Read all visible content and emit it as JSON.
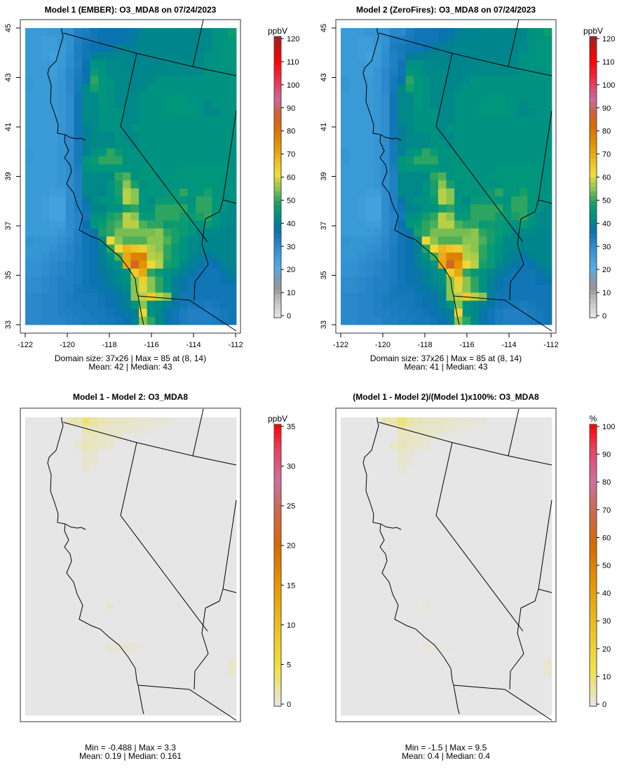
{
  "chart_data": [
    {
      "type": "heatmap",
      "id": "m1",
      "title": "Model 1 (EMBER): O3_MDA8 on 07/24/2023",
      "units": "ppbV",
      "colorbar_ticks": [
        0,
        10,
        20,
        30,
        40,
        50,
        60,
        70,
        80,
        90,
        100,
        110,
        120
      ],
      "xticks": [
        "-122",
        "-120",
        "-118",
        "-116",
        "-114",
        "-112"
      ],
      "yticks": [
        "33",
        "35",
        "37",
        "39",
        "41",
        "43",
        "45"
      ],
      "xlim": [
        -122,
        -112
      ],
      "ylim": [
        33,
        45
      ],
      "stats_line1": "Domain size: 37x26 | Max = 85 at (8, 14)",
      "stats_line2": "Mean: 42 |  Median: 43"
    },
    {
      "type": "heatmap",
      "id": "m2",
      "title": "Model 2 (ZeroFires): O3_MDA8 on 07/24/2023",
      "units": "ppbV",
      "colorbar_ticks": [
        0,
        10,
        20,
        30,
        40,
        50,
        60,
        70,
        80,
        90,
        100,
        110,
        120
      ],
      "xticks": [
        "-122",
        "-120",
        "-118",
        "-116",
        "-114",
        "-112"
      ],
      "yticks": [
        "33",
        "35",
        "37",
        "39",
        "41",
        "43",
        "45"
      ],
      "xlim": [
        -122,
        -112
      ],
      "ylim": [
        33,
        45
      ],
      "stats_line1": "Domain size: 37x26 | Max = 85 at (8, 14)",
      "stats_line2": "Mean: 41 |  Median: 43"
    },
    {
      "type": "heatmap",
      "id": "diff",
      "title": "Model 1 - Model 2: O3_MDA8",
      "units": "ppbV",
      "colorbar_ticks": [
        0,
        5,
        10,
        15,
        20,
        25,
        30,
        35
      ],
      "stats_line1": "Min = -0.488 | Max = 3.3",
      "stats_line2": "Mean: 0.19 |  Median: 0.161"
    },
    {
      "type": "heatmap",
      "id": "pct",
      "title": "(Model 1 - Model 2)/(Model 1)x100%: O3_MDA8",
      "units": "%",
      "colorbar_ticks": [
        0,
        10,
        20,
        30,
        40,
        50,
        60,
        70,
        80,
        90,
        100
      ],
      "stats_line1": "Min = -1.5 | Max = 9.5",
      "stats_line2": "Mean: 0.4 |  Median: 0.4"
    }
  ],
  "grid": {
    "rows": 37,
    "cols": 26,
    "model1": [
      [
        27,
        27,
        27,
        28,
        28,
        29,
        33,
        34,
        36,
        37,
        37,
        37,
        38,
        38,
        41,
        41,
        41,
        41,
        41,
        41,
        41,
        41,
        41,
        44,
        44,
        47
      ],
      [
        27,
        27,
        26,
        26,
        28,
        29,
        33,
        35,
        36,
        37,
        37,
        37,
        38,
        40,
        41,
        41,
        41,
        41,
        41,
        41,
        41,
        42,
        42,
        44,
        45,
        45
      ],
      [
        27,
        27,
        26,
        26,
        27,
        29,
        34,
        36,
        37,
        37,
        38,
        40,
        40,
        40,
        41,
        41,
        41,
        41,
        41,
        41,
        41,
        41,
        42,
        44,
        45,
        45
      ],
      [
        27,
        27,
        26,
        25,
        27,
        30,
        34,
        36,
        40,
        41,
        41,
        41,
        41,
        40,
        41,
        41,
        41,
        41,
        41,
        41,
        41,
        42,
        44,
        44,
        45,
        45
      ],
      [
        27,
        27,
        27,
        26,
        27,
        30,
        33,
        37,
        44,
        44,
        42,
        42,
        41,
        41,
        41,
        41,
        41,
        42,
        42,
        42,
        42,
        42,
        44,
        44,
        45,
        45
      ],
      [
        27,
        27,
        27,
        26,
        28,
        31,
        34,
        37,
        46,
        44,
        42,
        42,
        42,
        41,
        41,
        41,
        42,
        42,
        42,
        42,
        42,
        42,
        44,
        44,
        44,
        44
      ],
      [
        28,
        27,
        27,
        27,
        28,
        31,
        35,
        38,
        50,
        45,
        44,
        42,
        42,
        41,
        41,
        42,
        44,
        44,
        44,
        44,
        44,
        44,
        44,
        44,
        44,
        44
      ],
      [
        28,
        27,
        27,
        27,
        28,
        31,
        35,
        42,
        48,
        45,
        44,
        42,
        42,
        41,
        42,
        44,
        44,
        44,
        44,
        44,
        44,
        44,
        44,
        44,
        44,
        44
      ],
      [
        27,
        27,
        27,
        27,
        28,
        30,
        36,
        42,
        42,
        45,
        44,
        42,
        42,
        42,
        44,
        44,
        44,
        44,
        45,
        45,
        44,
        44,
        44,
        44,
        44,
        44
      ],
      [
        27,
        27,
        27,
        27,
        28,
        30,
        36,
        42,
        42,
        45,
        44,
        42,
        42,
        42,
        44,
        44,
        44,
        45,
        45,
        45,
        44,
        44,
        42,
        44,
        44,
        44
      ],
      [
        27,
        27,
        27,
        27,
        28,
        30,
        36,
        42,
        42,
        44,
        44,
        44,
        42,
        42,
        44,
        44,
        44,
        45,
        45,
        45,
        45,
        44,
        42,
        42,
        44,
        44
      ],
      [
        27,
        27,
        27,
        27,
        28,
        30,
        36,
        42,
        42,
        44,
        44,
        44,
        42,
        42,
        44,
        44,
        44,
        44,
        44,
        44,
        44,
        44,
        44,
        44,
        44,
        44
      ],
      [
        27,
        27,
        27,
        27,
        28,
        30,
        36,
        40,
        42,
        44,
        44,
        44,
        42,
        44,
        44,
        44,
        44,
        44,
        44,
        44,
        44,
        44,
        44,
        44,
        44,
        44
      ],
      [
        27,
        27,
        27,
        27,
        28,
        30,
        36,
        40,
        42,
        42,
        42,
        44,
        42,
        42,
        44,
        44,
        44,
        44,
        44,
        44,
        44,
        44,
        44,
        44,
        44,
        44
      ],
      [
        27,
        27,
        27,
        27,
        28,
        30,
        35,
        40,
        42,
        42,
        42,
        44,
        44,
        42,
        44,
        44,
        44,
        44,
        44,
        44,
        44,
        44,
        44,
        44,
        44,
        44
      ],
      [
        28,
        27,
        27,
        27,
        28,
        30,
        35,
        40,
        44,
        45,
        50,
        46,
        44,
        44,
        44,
        44,
        44,
        44,
        44,
        44,
        44,
        44,
        44,
        44,
        44,
        44
      ],
      [
        28,
        27,
        27,
        27,
        28,
        30,
        35,
        45,
        46,
        50,
        50,
        50,
        44,
        44,
        44,
        44,
        44,
        44,
        44,
        44,
        44,
        44,
        44,
        44,
        44,
        44
      ],
      [
        27,
        27,
        27,
        27,
        28,
        30,
        34,
        44,
        45,
        45,
        45,
        45,
        44,
        44,
        45,
        45,
        44,
        44,
        44,
        45,
        45,
        45,
        45,
        45,
        45,
        44
      ],
      [
        27,
        27,
        27,
        27,
        28,
        30,
        33,
        42,
        42,
        42,
        42,
        50,
        52,
        44,
        45,
        45,
        44,
        44,
        45,
        45,
        45,
        45,
        45,
        45,
        44,
        44
      ],
      [
        27,
        27,
        27,
        27,
        28,
        30,
        33,
        42,
        42,
        42,
        44,
        48,
        55,
        48,
        44,
        45,
        45,
        44,
        44,
        44,
        45,
        45,
        45,
        45,
        44,
        44
      ],
      [
        27,
        27,
        27,
        26,
        26,
        30,
        33,
        42,
        42,
        41,
        44,
        48,
        58,
        55,
        44,
        45,
        44,
        45,
        46,
        50,
        45,
        45,
        48,
        45,
        44,
        44
      ],
      [
        27,
        27,
        26,
        25,
        25,
        30,
        33,
        38,
        42,
        44,
        44,
        46,
        58,
        55,
        45,
        42,
        46,
        46,
        46,
        45,
        44,
        50,
        50,
        45,
        44,
        44
      ],
      [
        27,
        27,
        26,
        25,
        25,
        30,
        33,
        36,
        41,
        41,
        44,
        44,
        48,
        50,
        44,
        45,
        50,
        50,
        50,
        50,
        45,
        50,
        50,
        45,
        44,
        42
      ],
      [
        27,
        27,
        26,
        25,
        25,
        30,
        32,
        35,
        44,
        44,
        48,
        50,
        58,
        55,
        46,
        46,
        50,
        50,
        50,
        47,
        46,
        48,
        50,
        45,
        42,
        42
      ],
      [
        27,
        27,
        27,
        26,
        26,
        30,
        32,
        37,
        45,
        46,
        50,
        52,
        58,
        58,
        52,
        50,
        50,
        46,
        47,
        46,
        45,
        44,
        46,
        44,
        42,
        42
      ],
      [
        27,
        27,
        27,
        27,
        28,
        30,
        33,
        36,
        38,
        48,
        50,
        54,
        54,
        54,
        54,
        54,
        55,
        50,
        48,
        46,
        45,
        42,
        42,
        42,
        41,
        41
      ],
      [
        29,
        28,
        28,
        28,
        29,
        31,
        33,
        36,
        37,
        42,
        62,
        55,
        52,
        52,
        52,
        55,
        55,
        52,
        48,
        45,
        42,
        42,
        41,
        41,
        41,
        41
      ],
      [
        28,
        28,
        28,
        29,
        30,
        32,
        34,
        36,
        37,
        40,
        50,
        62,
        68,
        66,
        64,
        57,
        55,
        50,
        46,
        44,
        42,
        41,
        41,
        41,
        41,
        41
      ],
      [
        28,
        28,
        29,
        30,
        31,
        32,
        34,
        36,
        37,
        40,
        44,
        52,
        70,
        78,
        78,
        58,
        57,
        50,
        46,
        44,
        41,
        40,
        38,
        40,
        41,
        41
      ],
      [
        29,
        29,
        30,
        31,
        32,
        33,
        34,
        36,
        37,
        40,
        42,
        44,
        70,
        85,
        74,
        62,
        58,
        48,
        46,
        42,
        40,
        38,
        36,
        37,
        40,
        41
      ],
      [
        29,
        29,
        30,
        31,
        32,
        33,
        34,
        36,
        37,
        38,
        40,
        42,
        44,
        65,
        70,
        50,
        46,
        44,
        42,
        40,
        38,
        36,
        36,
        36,
        38,
        40
      ],
      [
        30,
        30,
        31,
        32,
        33,
        33,
        34,
        36,
        37,
        38,
        40,
        42,
        44,
        55,
        64,
        55,
        50,
        44,
        40,
        38,
        36,
        36,
        36,
        36,
        37,
        38
      ],
      [
        30,
        30,
        31,
        32,
        33,
        33,
        35,
        36,
        36,
        38,
        38,
        40,
        42,
        55,
        60,
        55,
        50,
        44,
        40,
        38,
        36,
        36,
        36,
        36,
        36,
        36
      ],
      [
        31,
        31,
        32,
        32,
        33,
        34,
        35,
        35,
        35,
        36,
        37,
        38,
        40,
        55,
        58,
        65,
        58,
        55,
        40,
        36,
        36,
        36,
        36,
        36,
        36,
        36
      ],
      [
        31,
        31,
        32,
        32,
        33,
        34,
        34,
        35,
        35,
        36,
        37,
        38,
        40,
        44,
        55,
        44,
        42,
        40,
        38,
        36,
        35,
        35,
        34,
        35,
        36,
        36
      ],
      [
        31,
        31,
        32,
        32,
        33,
        33,
        34,
        34,
        35,
        35,
        36,
        37,
        38,
        40,
        62,
        44,
        42,
        38,
        36,
        34,
        33,
        33,
        33,
        34,
        35,
        36
      ],
      [
        31,
        31,
        32,
        32,
        32,
        33,
        33,
        34,
        34,
        35,
        35,
        36,
        37,
        40,
        55,
        50,
        42,
        38,
        36,
        34,
        33,
        33,
        33,
        34,
        35,
        36
      ]
    ],
    "diff_nonzero_cells_row_col_value": [
      [
        0,
        5,
        1.2
      ],
      [
        0,
        6,
        1.5
      ],
      [
        0,
        7,
        3.3
      ],
      [
        0,
        8,
        2.0
      ],
      [
        0,
        9,
        1.5
      ],
      [
        0,
        10,
        1.0
      ],
      [
        0,
        11,
        1.0
      ],
      [
        0,
        12,
        1.0
      ],
      [
        0,
        13,
        0.8
      ],
      [
        0,
        14,
        0.6
      ],
      [
        0,
        15,
        0.6
      ],
      [
        0,
        16,
        0.5
      ],
      [
        0,
        17,
        0.5
      ],
      [
        1,
        7,
        1.5
      ],
      [
        1,
        8,
        1.2
      ],
      [
        1,
        9,
        1.0
      ],
      [
        1,
        10,
        0.9
      ],
      [
        1,
        11,
        0.8
      ],
      [
        1,
        12,
        0.8
      ],
      [
        1,
        13,
        0.6
      ],
      [
        1,
        14,
        0.5
      ],
      [
        1,
        15,
        0.4
      ],
      [
        2,
        7,
        1.0
      ],
      [
        2,
        8,
        1.2
      ],
      [
        2,
        9,
        0.9
      ],
      [
        2,
        10,
        0.8
      ],
      [
        2,
        11,
        0.6
      ],
      [
        3,
        6,
        0.8
      ],
      [
        3,
        7,
        1.5
      ],
      [
        3,
        8,
        1.2
      ],
      [
        3,
        9,
        1.0
      ],
      [
        3,
        10,
        0.6
      ],
      [
        4,
        7,
        0.8
      ],
      [
        4,
        8,
        0.6
      ],
      [
        5,
        7,
        0.8
      ],
      [
        5,
        8,
        0.6
      ],
      [
        6,
        7,
        0.6
      ],
      [
        23,
        10,
        0.6
      ],
      [
        28,
        10,
        0.6
      ],
      [
        28,
        11,
        0.5
      ],
      [
        28,
        12,
        0.5
      ],
      [
        28,
        13,
        0.5
      ],
      [
        30,
        25,
        0.8
      ],
      [
        31,
        25,
        0.7
      ]
    ]
  },
  "colors": {
    "background_zero": "#e6e6e6",
    "boundary": "#000000",
    "frame": "#555555"
  }
}
